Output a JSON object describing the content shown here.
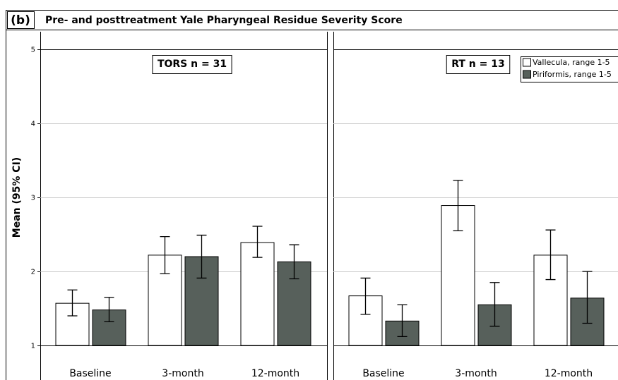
{
  "header": {
    "label": "(b)",
    "title": "Pre- and posttreatment Yale Pharyngeal Residue Severity Score"
  },
  "chart_data": [
    {
      "type": "bar",
      "annotation": "TORS n = 31",
      "y_label": "Mean (95% CI)",
      "categories": [
        "Baseline",
        "3-month",
        "12-month"
      ],
      "ylim": [
        1,
        5
      ],
      "yticks": [
        1,
        2,
        3,
        4,
        5
      ],
      "grid": true,
      "legend": false,
      "series": [
        {
          "name": "Vallecula, range 1-5",
          "color": "#ffffff",
          "values": [
            1.57,
            2.22,
            2.39
          ],
          "ci_low": [
            1.4,
            1.97,
            2.19
          ],
          "ci_high": [
            1.75,
            2.47,
            2.61
          ]
        },
        {
          "name": "Piriformis, range 1-5",
          "color": "#57605b",
          "values": [
            1.48,
            2.2,
            2.13
          ],
          "ci_low": [
            1.32,
            1.91,
            1.9
          ],
          "ci_high": [
            1.65,
            2.49,
            2.36
          ]
        }
      ]
    },
    {
      "type": "bar",
      "annotation": "RT n = 13",
      "categories": [
        "Baseline",
        "3-month",
        "12-month"
      ],
      "ylim": [
        1,
        5
      ],
      "yticks": [
        1,
        2,
        3,
        4,
        5
      ],
      "grid": true,
      "legend": "top-right",
      "series": [
        {
          "name": "Vallecula, range 1-5",
          "color": "#ffffff",
          "values": [
            1.67,
            2.89,
            2.22
          ],
          "ci_low": [
            1.42,
            2.55,
            1.89
          ],
          "ci_high": [
            1.91,
            3.23,
            2.56
          ]
        },
        {
          "name": "Piriformis, range 1-5",
          "color": "#57605b",
          "values": [
            1.33,
            1.55,
            1.64
          ],
          "ci_low": [
            1.12,
            1.26,
            1.3
          ],
          "ci_high": [
            1.55,
            1.85,
            2.0
          ]
        }
      ]
    }
  ]
}
